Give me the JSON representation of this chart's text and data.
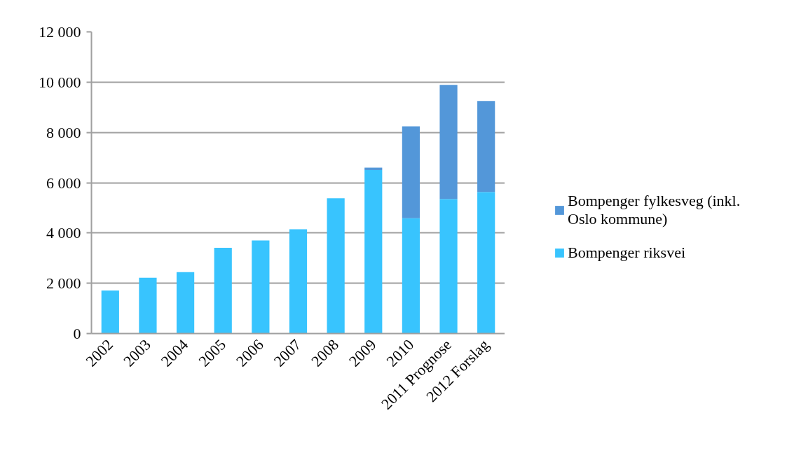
{
  "chart_data": {
    "type": "bar",
    "stacked": true,
    "categories": [
      "2002",
      "2003",
      "2004",
      "2005",
      "2006",
      "2007",
      "2008",
      "2009",
      "2010",
      "2011 Prognose",
      "2012 Forslag"
    ],
    "series": [
      {
        "name": "Bompenger riksvei",
        "color": "#38c4fe",
        "values": [
          1710,
          2220,
          2440,
          3410,
          3700,
          4150,
          5380,
          6500,
          4590,
          5350,
          5630
        ]
      },
      {
        "name": "Bompenger fylkesveg (inkl. Oslo kommune)",
        "color": "#5397d9",
        "values": [
          null,
          null,
          null,
          null,
          null,
          null,
          null,
          100,
          3650,
          4540,
          3620
        ]
      }
    ],
    "ylim": [
      0,
      12000
    ],
    "yticks": [
      0,
      {
        "value": 2000,
        "label": "2 000"
      },
      {
        "value": 4000,
        "label": "4 000"
      },
      {
        "value": 6000,
        "label": "6 000"
      },
      {
        "value": 8000,
        "label": "8 000"
      },
      {
        "value": 10000,
        "label": "10 000"
      },
      {
        "value": 12000,
        "label": "12 000"
      }
    ],
    "grid": "y",
    "legend": "right"
  }
}
